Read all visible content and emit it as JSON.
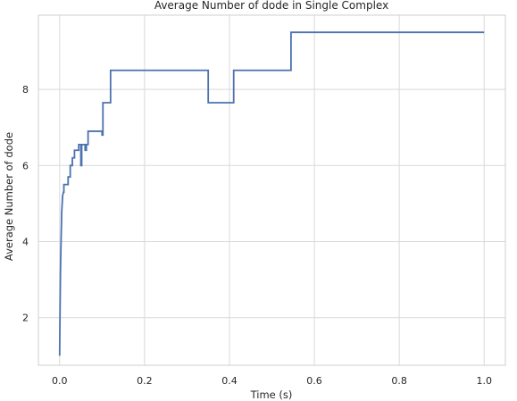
{
  "chart_data": {
    "type": "line",
    "title": "Average Number of dode in Single Complex",
    "xlabel": "Time (s)",
    "ylabel": "Average Number of dode",
    "xlim": [
      -0.05,
      1.05
    ],
    "ylim": [
      0.75,
      9.95
    ],
    "xticks": [
      0.0,
      0.2,
      0.4,
      0.6,
      0.8,
      1.0
    ],
    "xtick_labels": [
      "0.0",
      "0.2",
      "0.4",
      "0.6",
      "0.8",
      "1.0"
    ],
    "yticks": [
      2,
      4,
      6,
      8
    ],
    "ytick_labels": [
      "2",
      "4",
      "6",
      "8"
    ],
    "grid": true,
    "series": [
      {
        "color": "#4c72b0",
        "x": [
          0.0,
          0.001,
          0.002,
          0.003,
          0.004,
          0.005,
          0.006,
          0.007,
          0.009,
          0.01,
          0.01,
          0.02,
          0.02,
          0.025,
          0.025,
          0.03,
          0.03,
          0.035,
          0.035,
          0.045,
          0.045,
          0.05,
          0.05,
          0.052,
          0.052,
          0.06,
          0.06,
          0.063,
          0.063,
          0.067,
          0.067,
          0.1,
          0.1,
          0.102,
          0.102,
          0.12,
          0.12,
          0.35,
          0.35,
          0.41,
          0.41,
          0.545,
          0.545,
          1.0
        ],
        "y": [
          1.0,
          2.2,
          3.2,
          3.8,
          4.3,
          4.8,
          5.0,
          5.2,
          5.3,
          5.3,
          5.5,
          5.5,
          5.7,
          5.7,
          6.0,
          6.0,
          6.2,
          6.2,
          6.4,
          6.4,
          6.55,
          6.55,
          6.0,
          6.0,
          6.55,
          6.55,
          6.4,
          6.4,
          6.55,
          6.55,
          6.9,
          6.9,
          6.8,
          6.8,
          7.65,
          7.65,
          8.5,
          8.5,
          7.65,
          7.65,
          8.5,
          8.5,
          9.5,
          9.5
        ]
      }
    ]
  }
}
